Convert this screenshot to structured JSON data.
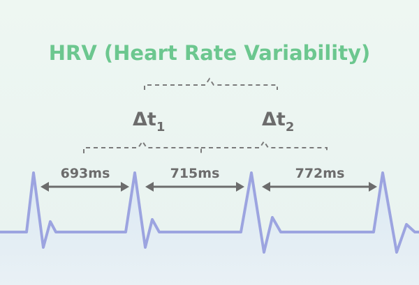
{
  "title": "HRV (Heart Rate Variability)",
  "deltas": [
    {
      "symbol": "Δt",
      "subscript": "1"
    },
    {
      "symbol": "Δt",
      "subscript": "2"
    }
  ],
  "intervals": [
    "693ms",
    "715ms",
    "772ms"
  ]
}
